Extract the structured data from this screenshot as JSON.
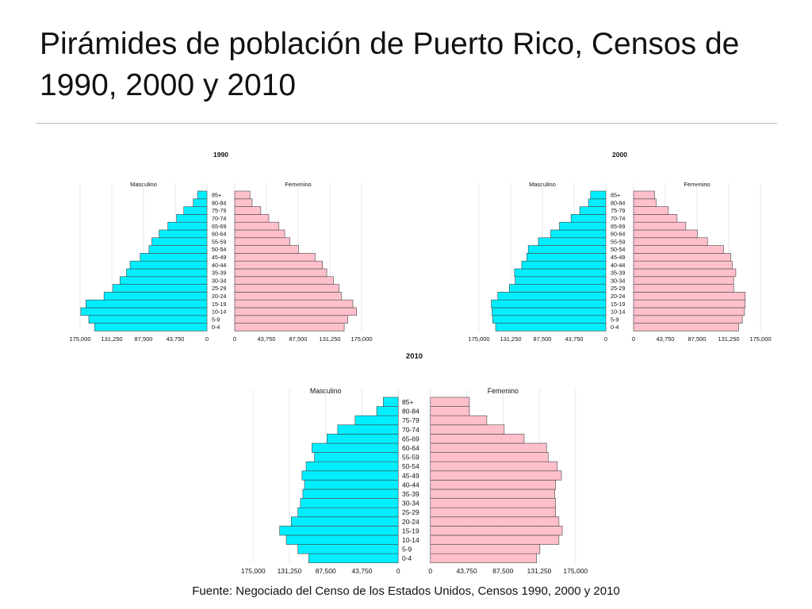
{
  "slide": {
    "title": "Pirámides de población de Puerto Rico, Censos de 1990, 2000 y 2010",
    "source": "Fuente: Negociado del Censo de los Estados Unidos, Censos 1990, 2000 y 2010"
  },
  "colors": {
    "male": "#00efff",
    "female": "#ffc0cb",
    "edge": "#444444",
    "grid": "#e2e2e2"
  },
  "chart_data": [
    {
      "type": "bar",
      "title": "1990",
      "left_label": "Masculino",
      "right_label": "Femenino",
      "categories": [
        "0-4",
        "5-9",
        "10-14",
        "15-19",
        "20-24",
        "25-29",
        "30-34",
        "35-39",
        "40-44",
        "45-49",
        "50-54",
        "55-59",
        "60-64",
        "65-69",
        "70-74",
        "75-79",
        "80-84",
        "85+"
      ],
      "xlim": [
        0,
        175000
      ],
      "ticks": [
        "175,000",
        "131,250",
        "87,500",
        "43,750",
        "0"
      ],
      "ticks_right": [
        "0",
        "43,750",
        "87,500",
        "131,250",
        "175,000"
      ],
      "series": [
        {
          "name": "Masculino",
          "values": [
            155000,
            163000,
            174000,
            167000,
            142000,
            130000,
            120000,
            111000,
            106000,
            92000,
            80000,
            76000,
            66000,
            54000,
            42000,
            32000,
            19000,
            13000
          ]
        },
        {
          "name": "Femenino",
          "values": [
            151000,
            156000,
            168000,
            163000,
            147000,
            144000,
            136000,
            127000,
            121000,
            111000,
            88000,
            76000,
            69000,
            61000,
            47000,
            36000,
            24000,
            21000
          ]
        }
      ]
    },
    {
      "type": "bar",
      "title": "2000",
      "left_label": "Masculino",
      "right_label": "Femenino",
      "categories": [
        "0-4",
        "5-9",
        "10-14",
        "15-19",
        "20-24",
        "25-29",
        "30-34",
        "35-39",
        "40-44",
        "45-49",
        "50-54",
        "55-59",
        "60-64",
        "65-69",
        "70-74",
        "75-79",
        "80-84",
        "85+"
      ],
      "xlim": [
        0,
        175000
      ],
      "ticks": [
        "175,000",
        "131,250",
        "87,500",
        "43,750",
        "0"
      ],
      "ticks_right": [
        "0",
        "43,750",
        "87,500",
        "131,250",
        "175,000"
      ],
      "series": [
        {
          "name": "Masculino",
          "values": [
            152000,
            156000,
            157000,
            158000,
            149000,
            133000,
            125000,
            126000,
            116000,
            109000,
            107000,
            93000,
            76000,
            64000,
            48000,
            36000,
            24000,
            21000
          ]
        },
        {
          "name": "Femenino",
          "values": [
            145000,
            150000,
            153000,
            154000,
            154000,
            138000,
            138000,
            141000,
            136000,
            134000,
            124000,
            102000,
            88000,
            72000,
            60000,
            48000,
            31000,
            29000
          ]
        }
      ]
    },
    {
      "type": "bar",
      "title": "2010",
      "left_label": "Masculino",
      "right_label": "Femenino",
      "categories": [
        "0-4",
        "5-9",
        "10-14",
        "15-19",
        "20-24",
        "25-29",
        "30-34",
        "35-39",
        "40-44",
        "45-49",
        "50-54",
        "55-59",
        "60-64",
        "65-69",
        "70-74",
        "75-79",
        "80-84",
        "85+"
      ],
      "xlim": [
        0,
        175000
      ],
      "ticks": [
        "175,000",
        "131,250",
        "87,500",
        "43,750",
        "0"
      ],
      "ticks_right": [
        "0",
        "43,750",
        "87,500",
        "131,250",
        "175,000"
      ],
      "series": [
        {
          "name": "Masculino",
          "values": [
            108000,
            121000,
            135000,
            143000,
            129000,
            121000,
            118000,
            115000,
            113000,
            116000,
            111000,
            101000,
            104000,
            86000,
            73000,
            52000,
            26000,
            18000
          ]
        },
        {
          "name": "Femenino",
          "values": [
            128000,
            132000,
            155000,
            159000,
            155000,
            151000,
            151000,
            150000,
            151000,
            158000,
            153000,
            142000,
            140000,
            113000,
            89000,
            68000,
            47000,
            47000
          ]
        }
      ]
    }
  ]
}
